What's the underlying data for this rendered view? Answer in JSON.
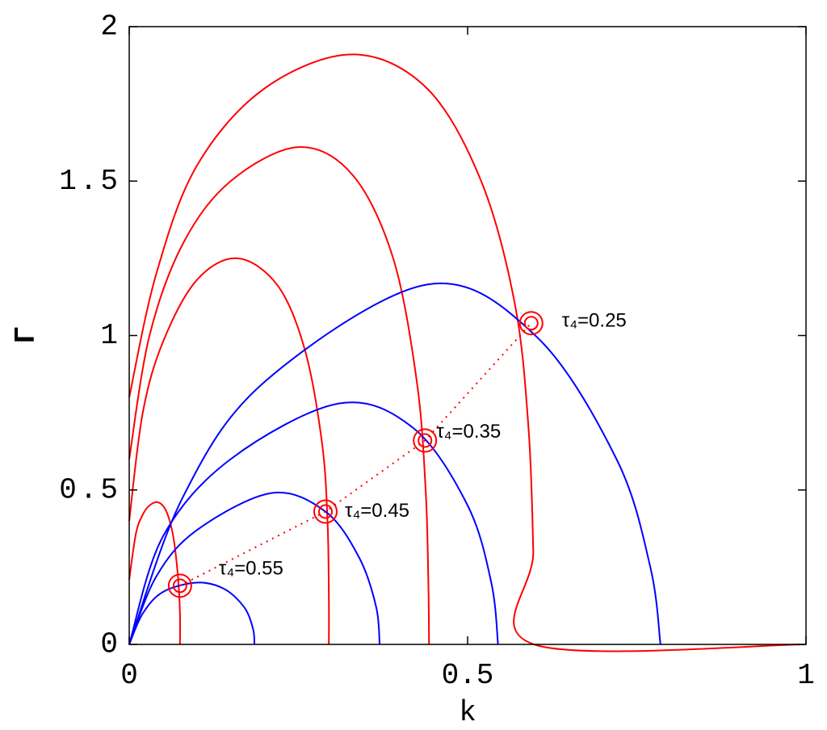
{
  "chart_data": {
    "type": "line",
    "xlabel": "k",
    "ylabel": "Γ",
    "xlim": [
      0,
      1
    ],
    "ylim": [
      0,
      2
    ],
    "xticks": [
      0,
      0.5,
      1
    ],
    "yticks": [
      0,
      0.5,
      1,
      1.5,
      2
    ],
    "series": [
      {
        "color": "#ff0000",
        "x": [
          0,
          0.01,
          0.02,
          0.03,
          0.043,
          0.055,
          0.065,
          0.072,
          0.075,
          0.075
        ],
        "values": [
          0.21,
          0.36,
          0.42,
          0.45,
          0.46,
          0.43,
          0.35,
          0.22,
          0.1,
          0
        ]
      },
      {
        "color": "#ff0000",
        "x": [
          0,
          0.02,
          0.05,
          0.1,
          0.16,
          0.22,
          0.26,
          0.285,
          0.293,
          0.295,
          0.295
        ],
        "values": [
          0.4,
          0.75,
          0.98,
          1.18,
          1.25,
          1.16,
          0.95,
          0.65,
          0.4,
          0.15,
          0
        ]
      },
      {
        "color": "#ff0000",
        "x": [
          0,
          0.03,
          0.08,
          0.15,
          0.25,
          0.33,
          0.39,
          0.425,
          0.438,
          0.442,
          0.443
        ],
        "values": [
          0.6,
          1.0,
          1.3,
          1.5,
          1.61,
          1.52,
          1.25,
          0.85,
          0.5,
          0.2,
          0
        ]
      },
      {
        "color": "#ff0000",
        "x": [
          0,
          0.04,
          0.1,
          0.2,
          0.33,
          0.44,
          0.52,
          0.57,
          0.59,
          0.597,
          0.598,
          1
        ],
        "values": [
          0.8,
          1.2,
          1.55,
          1.8,
          1.91,
          1.8,
          1.5,
          1.1,
          0.7,
          0.3,
          0,
          0
        ]
      },
      {
        "color": "#0000ff",
        "x": [
          0,
          0.02,
          0.05,
          0.1,
          0.14,
          0.17,
          0.183,
          0.185
        ],
        "values": [
          0,
          0.1,
          0.17,
          0.2,
          0.18,
          0.12,
          0.05,
          0
        ]
      },
      {
        "color": "#0000ff",
        "x": [
          0,
          0.04,
          0.1,
          0.21,
          0.29,
          0.34,
          0.365,
          0.37
        ],
        "values": [
          0,
          0.22,
          0.37,
          0.49,
          0.43,
          0.28,
          0.12,
          0
        ]
      },
      {
        "color": "#0000ff",
        "x": [
          0,
          0.05,
          0.15,
          0.31,
          0.42,
          0.5,
          0.535,
          0.545
        ],
        "values": [
          0,
          0.35,
          0.6,
          0.78,
          0.7,
          0.45,
          0.2,
          0
        ]
      },
      {
        "color": "#0000ff",
        "x": [
          0,
          0.08,
          0.2,
          0.44,
          0.6,
          0.72,
          0.77,
          0.785
        ],
        "values": [
          0,
          0.48,
          0.85,
          1.165,
          1.0,
          0.6,
          0.25,
          0
        ]
      }
    ],
    "markers": {
      "color": "#ff0000",
      "line": "dotted",
      "x": [
        0.075,
        0.29,
        0.437,
        0.594
      ],
      "values": [
        0.19,
        0.43,
        0.66,
        1.04
      ],
      "labels": [
        "τ₄=0.55",
        "τ₄=0.45",
        "τ₄=0.35",
        "τ₄=0.25"
      ]
    }
  }
}
